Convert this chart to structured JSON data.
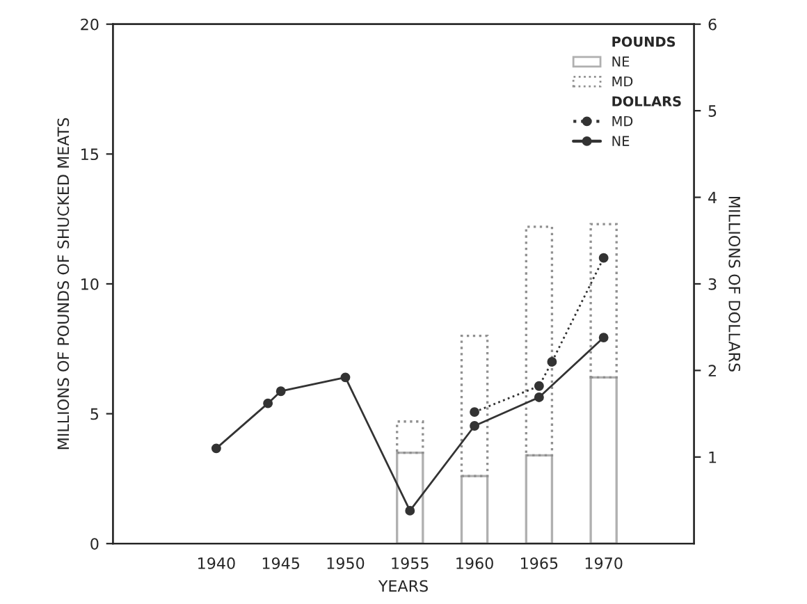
{
  "chart_data": {
    "type": "bar",
    "xlabel": "YEARS",
    "ylabel": "MILLIONS OF POUNDS OF SHUCKED MEATS",
    "y2label": "MILLIONS OF DOLLARS",
    "stacked": true,
    "series": [
      {
        "name": "NE",
        "color": "#b0b0b0",
        "line_style": "solid",
        "x": [
          1955,
          1960,
          1965,
          1970
        ],
        "values": [
          3.5,
          2.6,
          3.4,
          6.4
        ]
      },
      {
        "name": "MD",
        "color": "#909090",
        "line_style": "dotted",
        "x": [
          1955,
          1960,
          1965,
          1970
        ],
        "values": [
          1.2,
          5.4,
          8.8,
          5.9
        ]
      },
      {
        "name": "MD",
        "type": "line",
        "axis": "y2",
        "color": "#333333",
        "line_style": "dotted",
        "marker": "circle",
        "x": [
          1960,
          1965,
          1966,
          1970
        ],
        "values": [
          1.52,
          1.82,
          2.1,
          3.3
        ]
      },
      {
        "name": "NE",
        "type": "line",
        "axis": "y2",
        "color": "#333333",
        "line_style": "solid",
        "marker": "circle",
        "x": [
          1940,
          1944,
          1945,
          1950,
          1955,
          1960,
          1965,
          1970
        ],
        "values": [
          1.1,
          1.62,
          1.76,
          1.92,
          0.38,
          1.36,
          1.69,
          2.38
        ]
      }
    ],
    "annotations": [
      "POUNDS",
      "DOLLARS"
    ],
    "xlim": [
      1932,
      1977
    ],
    "xticks": [
      1940,
      1945,
      1950,
      1955,
      1960,
      1965,
      1970
    ],
    "ylim": [
      0,
      20
    ],
    "yticks": [
      0,
      5,
      10,
      15,
      20
    ],
    "y2lim": [
      0,
      6
    ],
    "y2ticks": [
      1,
      2,
      3,
      4,
      5,
      6
    ],
    "grid": false,
    "legend": "top right"
  }
}
